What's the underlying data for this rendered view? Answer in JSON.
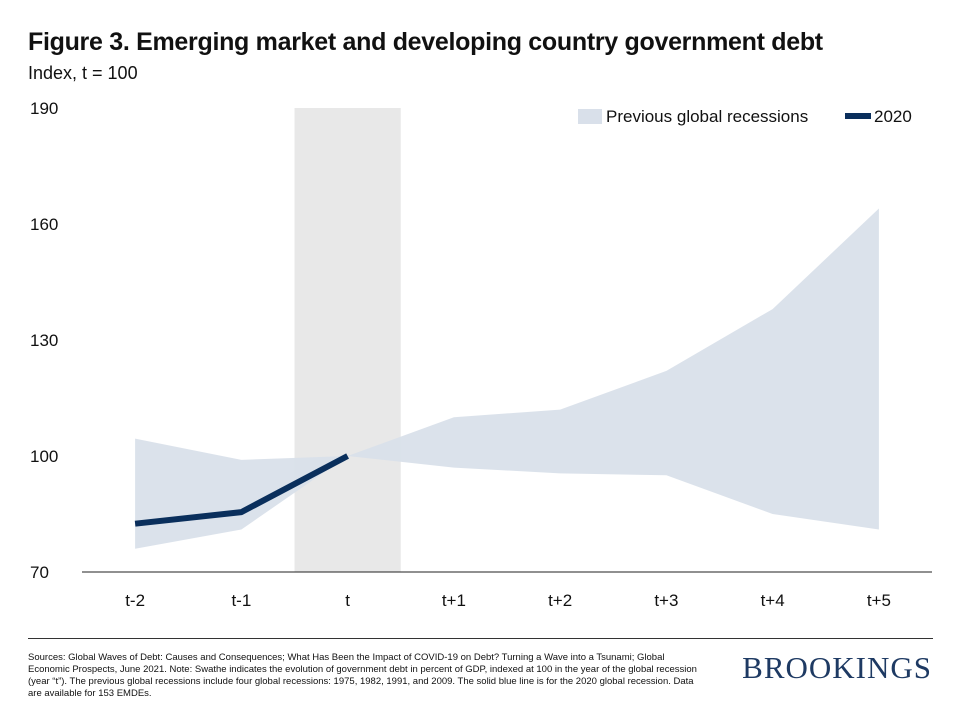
{
  "header": {
    "title": "Figure 3. Emerging market and developing country government debt",
    "subtitle": "Index, t = 100"
  },
  "chart_data": {
    "type": "area",
    "title": "Figure 3. Emerging market and developing country government debt",
    "ylabel": "Index, t = 100",
    "categories": [
      "t-2",
      "t-1",
      "t",
      "t+1",
      "t+2",
      "t+3",
      "t+4",
      "t+5"
    ],
    "ylim": [
      70,
      190
    ],
    "yticks": [
      70,
      100,
      130,
      160,
      190
    ],
    "highlight_category": "t",
    "band": {
      "name": "Previous global recessions",
      "lower": [
        76,
        81,
        100,
        97,
        95.5,
        95,
        85,
        81
      ],
      "upper": [
        104.5,
        99,
        100,
        110,
        112,
        122,
        138,
        164
      ]
    },
    "series": [
      {
        "name": "2020",
        "values": [
          82.5,
          85.5,
          100,
          null,
          null,
          null,
          null,
          null
        ]
      }
    ],
    "legend": {
      "position": "top-right",
      "items": [
        "Previous global recessions",
        "2020"
      ]
    },
    "colors": {
      "band": "#d9e0ea",
      "line": "#0a2f5c",
      "highlight": "#e8e8e8",
      "axis": "#222222"
    }
  },
  "footer": {
    "source": "Sources: Global Waves of Debt: Causes and Consequences; What Has Been the Impact of COVID-19 on Debt? Turning a Wave into a Tsunami; Global Economic Prospects, June 2021. Note: Swathe indicates the evolution of government debt in percent of GDP, indexed at 100 in the year of the global recession (year “t”). The previous global recessions include four global recessions: 1975, 1982, 1991, and 2009. The solid blue line is for the 2020 global recession. Data are available for 153 EMDEs.",
    "brand": "BROOKINGS"
  }
}
